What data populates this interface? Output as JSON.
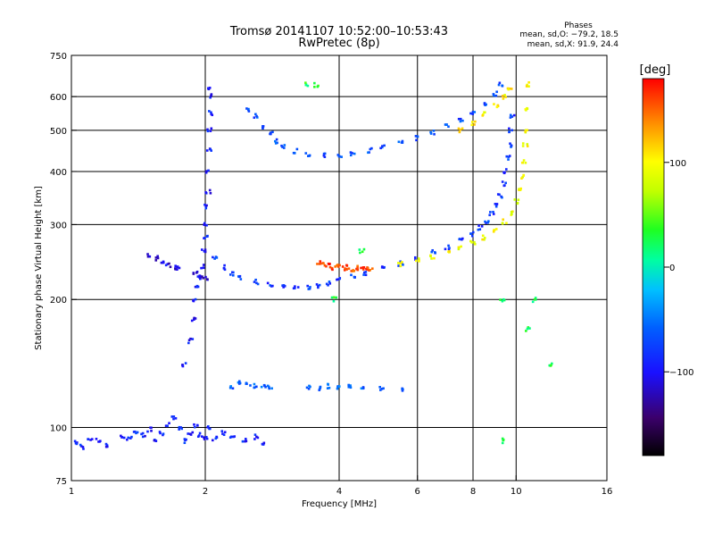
{
  "chart_data": {
    "type": "scatter",
    "title": "Tromsø 20141107 10:52:00–10:53:43",
    "subtitle": "RwPretec (8p)",
    "xlabel": "Frequency [MHz]",
    "ylabel": "Stationary phase Virtual Height [km]",
    "x_scale": "log",
    "y_scale": "log",
    "xlim": [
      1,
      16
    ],
    "ylim": [
      75,
      750
    ],
    "grid": true,
    "x_ticks": [
      1,
      2,
      4,
      6,
      8,
      10,
      16
    ],
    "x_tick_labels": [
      "1",
      "2",
      "4",
      "6",
      "8",
      "10",
      "16"
    ],
    "x_gridlines": [
      2,
      4,
      6,
      8,
      10
    ],
    "y_ticks": [
      75,
      100,
      200,
      300,
      400,
      500,
      600,
      750
    ],
    "y_tick_labels": [
      "75",
      "100",
      "200",
      "300",
      "400",
      "500",
      "600",
      "750"
    ],
    "y_gridlines": [
      100,
      200,
      300,
      400,
      500,
      600
    ],
    "stats": {
      "heading": "Phases",
      "lines": [
        "mean, sd,O: −79.2, 18.5",
        "mean, sd,X:  91.9, 24.4"
      ]
    },
    "colorbar": {
      "label": "[deg]",
      "range": [
        -180,
        180
      ],
      "ticks": [
        100,
        0,
        -100
      ],
      "tick_labels": [
        "100",
        "0",
        "−100"
      ]
    },
    "series": [
      {
        "trace": "low-F-spread",
        "phase": -90,
        "points": [
          [
            1.03,
            92
          ],
          [
            1.06,
            90
          ],
          [
            1.1,
            94
          ],
          [
            1.15,
            93
          ],
          [
            1.2,
            91
          ],
          [
            1.3,
            95
          ],
          [
            1.35,
            94
          ],
          [
            1.4,
            98
          ],
          [
            1.45,
            96
          ],
          [
            1.5,
            99
          ],
          [
            1.55,
            94
          ],
          [
            1.6,
            97
          ],
          [
            1.65,
            102
          ],
          [
            1.7,
            105
          ],
          [
            1.75,
            99
          ],
          [
            1.8,
            93
          ],
          [
            1.85,
            97
          ],
          [
            1.9,
            101
          ],
          [
            1.95,
            96
          ],
          [
            2.0,
            95
          ],
          [
            2.05,
            100
          ],
          [
            2.1,
            94
          ],
          [
            2.2,
            97
          ],
          [
            2.3,
            95
          ],
          [
            2.45,
            93
          ],
          [
            2.6,
            95
          ],
          [
            2.7,
            92
          ]
        ]
      },
      {
        "trace": "vertical-trace-2MHz",
        "phase": -95,
        "points": [
          [
            1.8,
            140
          ],
          [
            1.85,
            160
          ],
          [
            1.88,
            180
          ],
          [
            1.9,
            200
          ],
          [
            1.92,
            215
          ],
          [
            1.95,
            225
          ],
          [
            1.97,
            240
          ],
          [
            1.99,
            260
          ],
          [
            2.0,
            280
          ],
          [
            2.01,
            300
          ],
          [
            2.02,
            330
          ],
          [
            2.03,
            360
          ],
          [
            2.03,
            400
          ],
          [
            2.04,
            450
          ],
          [
            2.04,
            500
          ],
          [
            2.05,
            550
          ],
          [
            2.05,
            600
          ],
          [
            2.05,
            630
          ]
        ]
      },
      {
        "trace": "low-cluster-1.5MHz",
        "phase": -110,
        "points": [
          [
            1.5,
            255
          ],
          [
            1.55,
            250
          ],
          [
            1.6,
            243
          ],
          [
            1.65,
            240
          ],
          [
            1.7,
            238
          ],
          [
            1.75,
            237
          ],
          [
            1.9,
            232
          ],
          [
            1.95,
            228
          ],
          [
            2.0,
            225
          ]
        ]
      },
      {
        "trace": "F-layer-O",
        "phase": -80,
        "points": [
          [
            2.1,
            250
          ],
          [
            2.2,
            238
          ],
          [
            2.3,
            230
          ],
          [
            2.4,
            225
          ],
          [
            2.6,
            220
          ],
          [
            2.8,
            217
          ],
          [
            3.0,
            215
          ],
          [
            3.2,
            214
          ],
          [
            3.4,
            214
          ],
          [
            3.6,
            215
          ],
          [
            3.8,
            218
          ],
          [
            4.0,
            222
          ],
          [
            4.3,
            226
          ],
          [
            4.6,
            230
          ],
          [
            5.0,
            236
          ],
          [
            5.5,
            243
          ],
          [
            6.0,
            250
          ],
          [
            6.5,
            258
          ],
          [
            7.0,
            266
          ],
          [
            7.5,
            275
          ],
          [
            8.0,
            285
          ],
          [
            8.3,
            295
          ],
          [
            8.6,
            305
          ],
          [
            8.8,
            318
          ],
          [
            9.0,
            333
          ],
          [
            9.2,
            350
          ],
          [
            9.4,
            375
          ],
          [
            9.5,
            400
          ],
          [
            9.6,
            430
          ],
          [
            9.7,
            460
          ],
          [
            9.75,
            500
          ],
          [
            9.8,
            540
          ]
        ]
      },
      {
        "trace": "F-layer-X",
        "phase": 95,
        "points": [
          [
            5.5,
            242
          ],
          [
            6.0,
            247
          ],
          [
            6.5,
            252
          ],
          [
            7.0,
            258
          ],
          [
            7.5,
            264
          ],
          [
            8.0,
            272
          ],
          [
            8.5,
            280
          ],
          [
            9.0,
            292
          ],
          [
            9.4,
            305
          ],
          [
            9.7,
            320
          ],
          [
            10.0,
            340
          ],
          [
            10.2,
            365
          ],
          [
            10.35,
            390
          ],
          [
            10.45,
            420
          ],
          [
            10.5,
            460
          ],
          [
            10.55,
            500
          ],
          [
            10.6,
            560
          ],
          [
            10.6,
            640
          ]
        ]
      },
      {
        "trace": "F-high-O",
        "phase": -70,
        "points": [
          [
            2.5,
            560
          ],
          [
            2.6,
            540
          ],
          [
            2.7,
            510
          ],
          [
            2.8,
            490
          ],
          [
            2.9,
            470
          ],
          [
            3.0,
            458
          ],
          [
            3.2,
            446
          ],
          [
            3.4,
            440
          ],
          [
            3.7,
            437
          ],
          [
            4.0,
            438
          ],
          [
            4.3,
            442
          ],
          [
            4.7,
            448
          ],
          [
            5.0,
            455
          ],
          [
            5.5,
            467
          ],
          [
            6.0,
            480
          ],
          [
            6.5,
            495
          ],
          [
            7.0,
            512
          ],
          [
            7.5,
            530
          ],
          [
            8.0,
            550
          ],
          [
            8.5,
            575
          ],
          [
            9.0,
            610
          ],
          [
            9.2,
            640
          ]
        ]
      },
      {
        "trace": "F-high-X",
        "phase": 105,
        "points": [
          [
            7.5,
            500
          ],
          [
            8.0,
            520
          ],
          [
            8.5,
            545
          ],
          [
            9.0,
            570
          ],
          [
            9.4,
            600
          ],
          [
            9.7,
            630
          ]
        ]
      },
      {
        "trace": "red-patch",
        "phase": 160,
        "points": [
          [
            3.6,
            245
          ],
          [
            3.7,
            242
          ],
          [
            3.8,
            240
          ],
          [
            3.9,
            238
          ],
          [
            4.0,
            240
          ],
          [
            4.1,
            237
          ],
          [
            4.2,
            238
          ],
          [
            4.3,
            236
          ],
          [
            4.4,
            237
          ],
          [
            4.5,
            236
          ],
          [
            4.6,
            238
          ],
          [
            4.7,
            237
          ]
        ]
      },
      {
        "trace": "E-echo-125km",
        "phase": -60,
        "points": [
          [
            2.3,
            125
          ],
          [
            2.4,
            127
          ],
          [
            2.5,
            126
          ],
          [
            2.6,
            125
          ],
          [
            2.7,
            126
          ],
          [
            2.8,
            125
          ],
          [
            3.4,
            124
          ],
          [
            3.6,
            124
          ],
          [
            3.8,
            125
          ],
          [
            4.0,
            124
          ],
          [
            4.2,
            125
          ],
          [
            4.5,
            124
          ],
          [
            5.0,
            123
          ],
          [
            5.5,
            122
          ]
        ]
      },
      {
        "trace": "isolated",
        "phase": 30,
        "points": [
          [
            3.4,
            640
          ],
          [
            3.55,
            640
          ],
          [
            3.9,
            200
          ],
          [
            4.5,
            260
          ],
          [
            9.3,
            200
          ],
          [
            9.3,
            93
          ],
          [
            11.0,
            200
          ],
          [
            12.0,
            140
          ],
          [
            10.6,
            170
          ]
        ]
      }
    ]
  }
}
